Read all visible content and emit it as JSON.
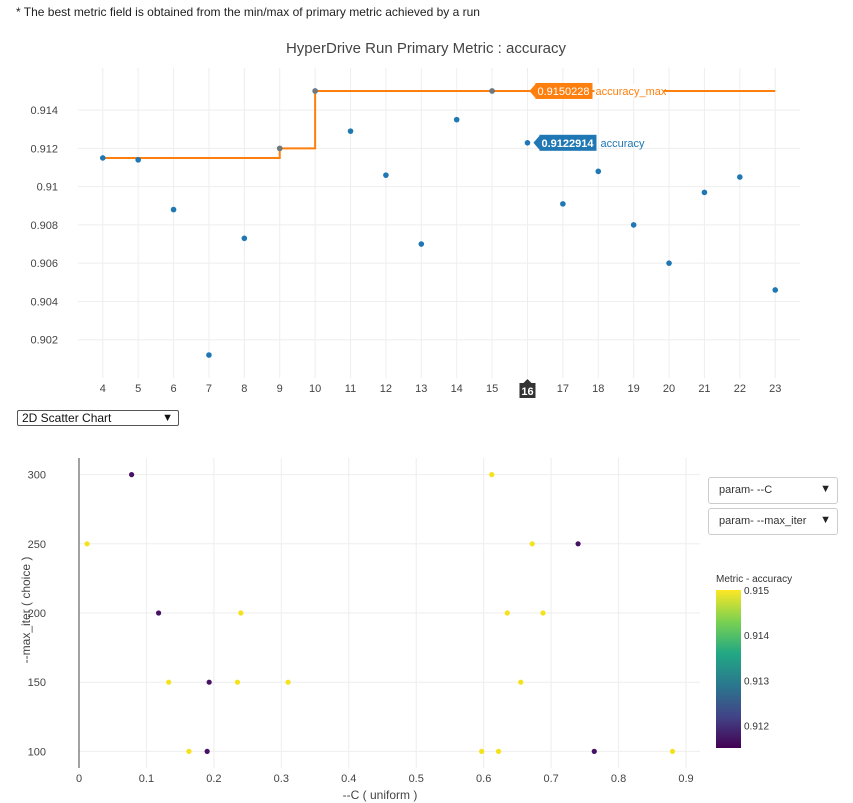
{
  "note": "* The best metric field is obtained from the min/max of primary metric achieved by a run",
  "chart_type_select": {
    "selected": "2D Scatter Chart"
  },
  "param_dropdowns": {
    "x": "param- --C",
    "y": "param- --max_iter"
  },
  "colors": {
    "accuracy": "#1f77b4",
    "accuracy_max": "#ff7f0e"
  },
  "chart_data": [
    {
      "type": "scatter",
      "title": "HyperDrive Run Primary Metric : accuracy",
      "xlabel": "",
      "ylabel": "",
      "xlim": [
        3.3,
        23.7
      ],
      "ylim": [
        0.9,
        0.9162
      ],
      "x_ticks": [
        4,
        5,
        6,
        7,
        8,
        9,
        10,
        11,
        12,
        13,
        14,
        15,
        16,
        17,
        18,
        19,
        20,
        21,
        22,
        23
      ],
      "y_ticks": [
        0.902,
        0.904,
        0.906,
        0.908,
        0.91,
        0.912,
        0.914
      ],
      "y_tick_labels": [
        "0.902",
        "0.904",
        "0.906",
        "0.908",
        "0.91",
        "0.912",
        "0.914"
      ],
      "series": [
        {
          "name": "accuracy",
          "type": "scatter",
          "x": [
            4,
            5,
            6,
            7,
            8,
            9,
            10,
            11,
            12,
            13,
            14,
            15,
            16,
            17,
            18,
            19,
            20,
            21,
            22,
            23
          ],
          "y": [
            0.9115,
            0.9114,
            0.9088,
            0.9012,
            0.9073,
            0.912,
            0.915,
            0.9129,
            0.9106,
            0.907,
            0.9135,
            0.915,
            0.9122914,
            0.9091,
            0.9108,
            0.908,
            0.906,
            0.9097,
            0.9105,
            0.9046
          ]
        },
        {
          "name": "accuracy_max",
          "type": "step",
          "x": [
            4,
            5,
            6,
            7,
            8,
            9,
            10,
            11,
            12,
            13,
            14,
            15,
            16,
            17,
            18,
            19,
            20,
            21,
            22,
            23
          ],
          "y": [
            0.9115,
            0.9115,
            0.9115,
            0.9115,
            0.9115,
            0.912,
            0.915,
            0.915,
            0.915,
            0.915,
            0.915,
            0.915,
            0.9150228,
            0.915,
            0.915,
            0.915,
            0.915,
            0.915,
            0.915,
            0.915
          ]
        }
      ],
      "hover_x": 16,
      "hover_x_label": "16",
      "hover_labels": {
        "accuracy": {
          "value": "0.9122914",
          "name": "accuracy"
        },
        "accuracy_max": {
          "value": "0.9150228",
          "name": "accuracy_max"
        }
      }
    },
    {
      "type": "scatter",
      "title": "",
      "xlabel": "--C ( uniform )",
      "ylabel": "--max_iter ( choice )",
      "xlim": [
        -0.01,
        0.92
      ],
      "ylim": [
        88,
        312
      ],
      "x_ticks": [
        0,
        0.1,
        0.2,
        0.3,
        0.4,
        0.5,
        0.6,
        0.7,
        0.8,
        0.9
      ],
      "x_tick_labels": [
        "0",
        "0.1",
        "0.2",
        "0.3",
        "0.4",
        "0.5",
        "0.6",
        "0.7",
        "0.8",
        "0.9"
      ],
      "y_ticks": [
        100,
        150,
        200,
        250,
        300
      ],
      "y_tick_labels": [
        "100",
        "150",
        "200",
        "250",
        "300"
      ],
      "colorbar": {
        "title": "Metric - accuracy",
        "min": 0.9115,
        "max": 0.915,
        "ticks": [
          0.912,
          0.913,
          0.914,
          0.915
        ],
        "tick_labels": [
          "0.912",
          "0.913",
          "0.914",
          "0.915"
        ]
      },
      "points": [
        {
          "x": 0.078,
          "y": 300,
          "c": 0.9115
        },
        {
          "x": 0.612,
          "y": 300,
          "c": 0.915
        },
        {
          "x": 0.012,
          "y": 250,
          "c": 0.915
        },
        {
          "x": 0.672,
          "y": 250,
          "c": 0.915
        },
        {
          "x": 0.74,
          "y": 250,
          "c": 0.9115
        },
        {
          "x": 0.118,
          "y": 200,
          "c": 0.9115
        },
        {
          "x": 0.24,
          "y": 200,
          "c": 0.915
        },
        {
          "x": 0.635,
          "y": 200,
          "c": 0.915
        },
        {
          "x": 0.688,
          "y": 200,
          "c": 0.915
        },
        {
          "x": 0.133,
          "y": 150,
          "c": 0.915
        },
        {
          "x": 0.193,
          "y": 150,
          "c": 0.9115
        },
        {
          "x": 0.235,
          "y": 150,
          "c": 0.915
        },
        {
          "x": 0.31,
          "y": 150,
          "c": 0.915
        },
        {
          "x": 0.655,
          "y": 150,
          "c": 0.915
        },
        {
          "x": 0.163,
          "y": 100,
          "c": 0.915
        },
        {
          "x": 0.19,
          "y": 100,
          "c": 0.9115
        },
        {
          "x": 0.597,
          "y": 100,
          "c": 0.915
        },
        {
          "x": 0.622,
          "y": 100,
          "c": 0.915
        },
        {
          "x": 0.764,
          "y": 100,
          "c": 0.9115
        },
        {
          "x": 0.88,
          "y": 100,
          "c": 0.915
        }
      ]
    }
  ]
}
